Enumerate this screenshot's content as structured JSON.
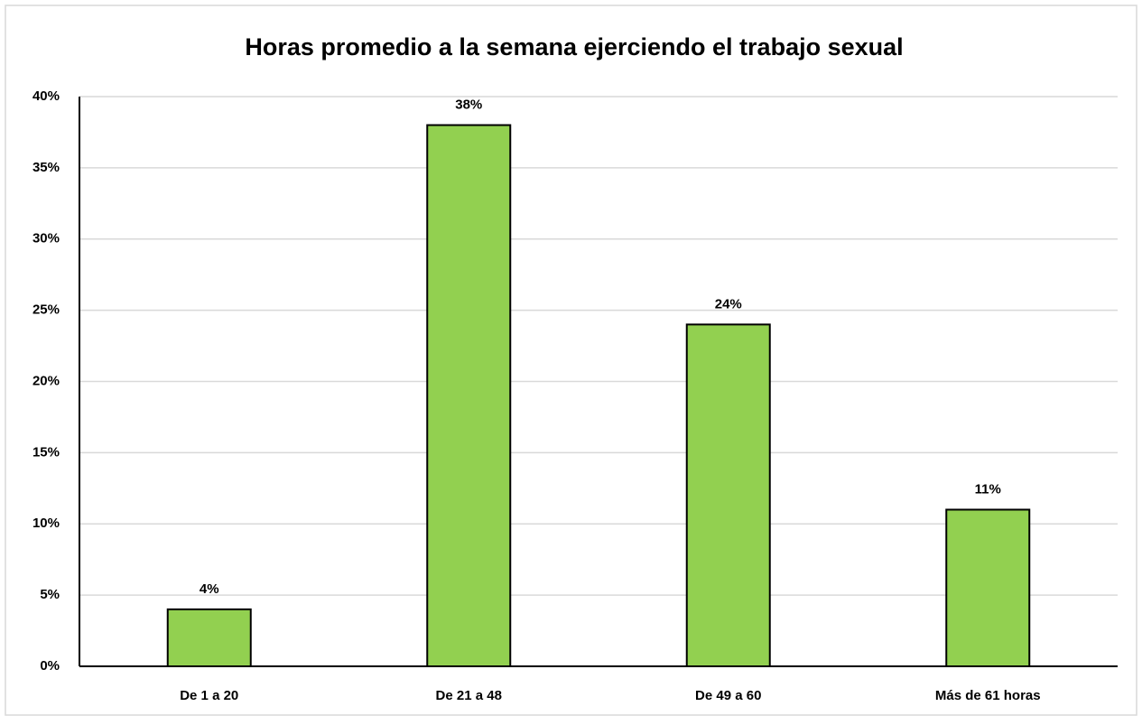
{
  "chart_data": {
    "type": "bar",
    "title": "Horas promedio a la semana ejerciendo el trabajo sexual",
    "categories": [
      "De 1 a 20",
      "De 21 a 48",
      "De 49 a 60",
      "Más de 61 horas"
    ],
    "values": [
      4,
      38,
      24,
      11
    ],
    "value_labels": [
      "4%",
      "38%",
      "24%",
      "11%"
    ],
    "color": "#92d050",
    "ylim": [
      0,
      40
    ],
    "yticks": [
      {
        "value": 0,
        "label": "0%"
      },
      {
        "value": 5,
        "label": "5%"
      },
      {
        "value": 10,
        "label": "10%"
      },
      {
        "value": 15,
        "label": "15%"
      },
      {
        "value": 20,
        "label": "20%"
      },
      {
        "value": 25,
        "label": "25%"
      },
      {
        "value": 30,
        "label": "30%"
      },
      {
        "value": 35,
        "label": "35%"
      },
      {
        "value": 40,
        "label": "40%"
      }
    ],
    "grid": true
  }
}
